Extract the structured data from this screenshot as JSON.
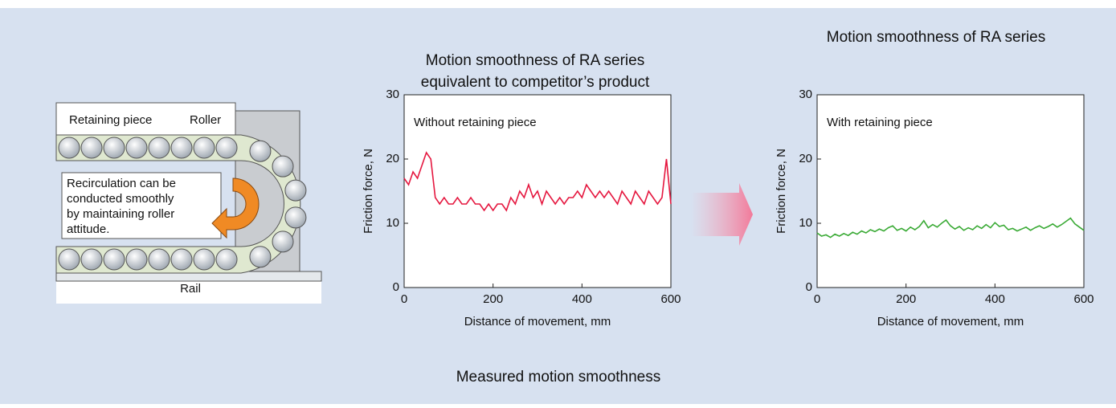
{
  "diagram": {
    "labels": [
      "Retaining piece",
      "Roller",
      "Rail"
    ],
    "note": [
      "Recirculation can be",
      "conducted smoothly",
      "by maintaining roller",
      "attitude."
    ]
  },
  "caption": "Measured motion smoothness",
  "chart_data": [
    {
      "type": "line",
      "title": [
        "Motion smoothness of RA series",
        "equivalent to competitor’s product"
      ],
      "annotation": "Without retaining piece",
      "x_label": "Distance of movement, mm",
      "y_label": "Friction force, N",
      "xlim": [
        0,
        600
      ],
      "ylim": [
        0,
        30
      ],
      "xticks": [
        0,
        200,
        400,
        600
      ],
      "yticks": [
        0,
        10,
        20,
        30
      ],
      "x": [
        0,
        10,
        20,
        30,
        40,
        50,
        60,
        70,
        80,
        90,
        100,
        110,
        120,
        130,
        140,
        150,
        160,
        170,
        180,
        190,
        200,
        210,
        220,
        230,
        240,
        250,
        260,
        270,
        280,
        290,
        300,
        310,
        320,
        330,
        340,
        350,
        360,
        370,
        380,
        390,
        400,
        410,
        420,
        430,
        440,
        450,
        460,
        470,
        480,
        490,
        500,
        510,
        520,
        530,
        540,
        550,
        560,
        570,
        580,
        590,
        600
      ],
      "series": [
        {
          "name": null,
          "color": "#e5173f",
          "values": [
            17,
            16,
            18,
            17,
            19,
            21,
            20,
            14,
            13,
            14,
            13,
            13,
            14,
            13,
            13,
            14,
            13,
            13,
            12,
            13,
            12,
            13,
            13,
            12,
            14,
            13,
            15,
            14,
            16,
            14,
            15,
            13,
            15,
            14,
            13,
            14,
            13,
            14,
            14,
            15,
            14,
            16,
            15,
            14,
            15,
            14,
            15,
            14,
            13,
            15,
            14,
            13,
            15,
            14,
            13,
            15,
            14,
            13,
            14,
            20,
            13
          ]
        }
      ]
    },
    {
      "type": "line",
      "title": [
        "Motion smoothness of RA series"
      ],
      "annotation": "With retaining piece",
      "x_label": "Distance of movement, mm",
      "y_label": "Friction force, N",
      "xlim": [
        0,
        600
      ],
      "ylim": [
        0,
        30
      ],
      "xticks": [
        0,
        200,
        400,
        600
      ],
      "yticks": [
        0,
        10,
        20,
        30
      ],
      "x": [
        0,
        10,
        20,
        30,
        40,
        50,
        60,
        70,
        80,
        90,
        100,
        110,
        120,
        130,
        140,
        150,
        160,
        170,
        180,
        190,
        200,
        210,
        220,
        230,
        240,
        250,
        260,
        270,
        280,
        290,
        300,
        310,
        320,
        330,
        340,
        350,
        360,
        370,
        380,
        390,
        400,
        410,
        420,
        430,
        440,
        450,
        460,
        470,
        480,
        490,
        500,
        510,
        520,
        530,
        540,
        550,
        560,
        570,
        580,
        590,
        600
      ],
      "series": [
        {
          "name": null,
          "color": "#3aaa35",
          "values": [
            8.5,
            8,
            8.2,
            7.8,
            8.3,
            8,
            8.4,
            8.1,
            8.6,
            8.3,
            8.8,
            8.5,
            9,
            8.7,
            9.1,
            8.8,
            9.3,
            9.6,
            8.9,
            9.2,
            8.8,
            9.4,
            9,
            9.5,
            10.4,
            9.3,
            9.8,
            9.4,
            10,
            10.5,
            9.6,
            9.1,
            9.5,
            8.9,
            9.3,
            9,
            9.6,
            9.2,
            9.8,
            9.3,
            10.1,
            9.5,
            9.7,
            9,
            9.2,
            8.8,
            9.1,
            9.4,
            8.9,
            9.3,
            9.6,
            9.2,
            9.5,
            9.9,
            9.4,
            9.8,
            10.3,
            10.8,
            9.9,
            9.4,
            8.9
          ]
        }
      ]
    }
  ]
}
